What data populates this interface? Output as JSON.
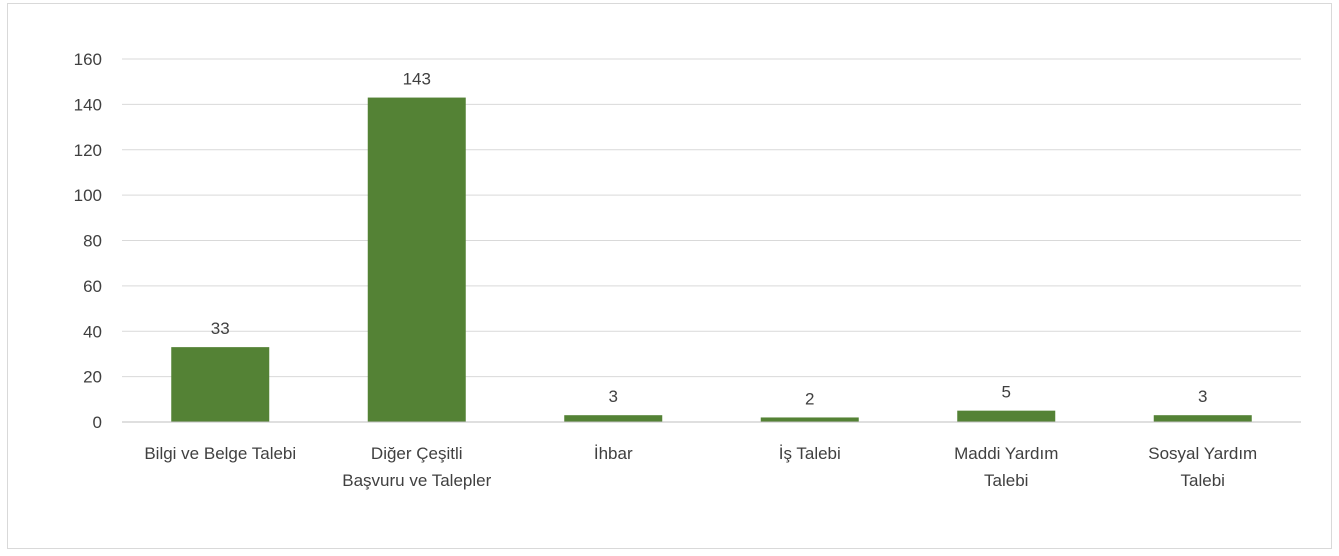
{
  "chart_data": {
    "type": "bar",
    "categories": [
      [
        "Bilgi ve Belge Talebi"
      ],
      [
        "Diğer Çeşitli",
        "Başvuru ve Talepler"
      ],
      [
        "İhbar"
      ],
      [
        "İş Talebi"
      ],
      [
        "Maddi Yardım",
        "Talebi"
      ],
      [
        "Sosyal Yardım",
        "Talebi"
      ]
    ],
    "values": [
      33,
      143,
      3,
      2,
      5,
      3
    ],
    "data_labels": [
      "33",
      "143",
      "3",
      "2",
      "5",
      "3"
    ],
    "title": "",
    "xlabel": "",
    "ylabel": "",
    "ylim": [
      0,
      160
    ],
    "yticks": [
      0,
      20,
      40,
      60,
      80,
      100,
      120,
      140,
      160
    ],
    "grid": true,
    "legend": "none",
    "colors": {
      "bar": "#548235",
      "grid": "#d9d9d9",
      "axis": "#bfbfbf",
      "text": "#404040"
    }
  }
}
